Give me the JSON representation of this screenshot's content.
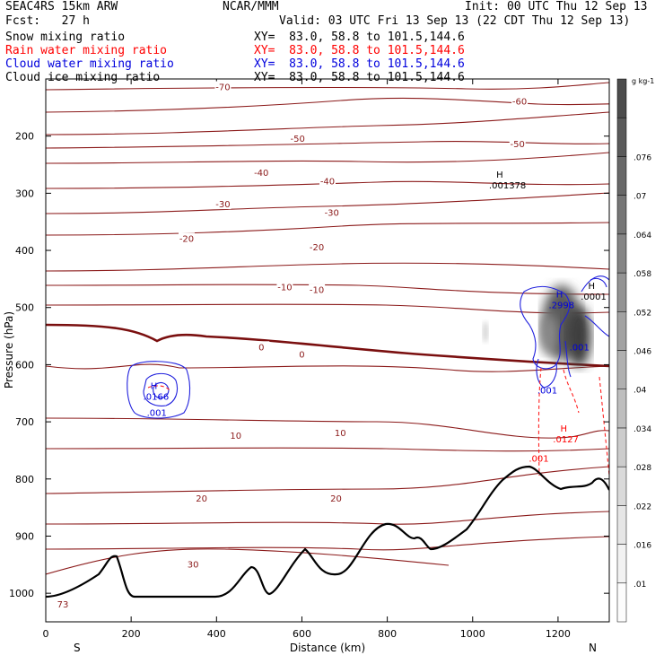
{
  "header": {
    "model": "SEAC4RS 15km ARW",
    "org": "NCAR/MMM",
    "init": "Init: 00 UTC Thu 12 Sep 13",
    "fcst": "Fcst:   27 h",
    "valid": "Valid: 03 UTC Fri 13 Sep 13 (22 CDT Thu 12 Sep 13)",
    "fields": [
      {
        "name": "Snow mixing ratio",
        "xy": "XY=  83.0, 58.8 to 101.5,144.6",
        "color": "#000000"
      },
      {
        "name": "Rain water mixing ratio",
        "xy": "XY=  83.0, 58.8 to 101.5,144.6",
        "color": "#ff0000"
      },
      {
        "name": "Cloud water mixing ratio",
        "xy": "XY=  83.0, 58.8 to 101.5,144.6",
        "color": "#0000dd"
      },
      {
        "name": "Cloud ice mixing ratio",
        "xy": "XY=  83.0, 58.8 to 101.5,144.6",
        "color": "#000000"
      }
    ]
  },
  "chart_data": {
    "type": "cross-section",
    "xlabel": "Distance (km)",
    "ylabel": "Pressure (hPa)",
    "xlim": [
      0,
      1320
    ],
    "ylim": [
      1050,
      100
    ],
    "xticks": [
      0,
      200,
      400,
      600,
      800,
      1000,
      1200
    ],
    "yticks": [
      200,
      300,
      400,
      500,
      600,
      700,
      800,
      900,
      1000
    ],
    "x_end_labels": {
      "left": "S",
      "right": "N"
    },
    "colorbar": {
      "unit": "g kg-1",
      "labels": [
        ".01",
        ".016",
        ".022",
        ".028",
        ".034",
        ".04",
        ".046",
        ".052",
        ".058",
        ".064",
        ".07",
        ".076"
      ],
      "colors": [
        "#fcfcfc",
        "#f2f2f2",
        "#e6e6e6",
        "#dadada",
        "#cccccc",
        "#bebebe",
        "#b0b0b0",
        "#a2a2a2",
        "#939393",
        "#858585",
        "#767676",
        "#686868",
        "#5a5a5a",
        "#4c4c4c"
      ]
    },
    "temperature_contours": {
      "color": "#8b1a1a",
      "labels": [
        {
          "text": "-70",
          "x": 415,
          "p": 115
        },
        {
          "text": "-60",
          "x": 1110,
          "p": 140
        },
        {
          "text": "-50",
          "x": 590,
          "p": 205
        },
        {
          "text": "-50",
          "x": 1105,
          "p": 215
        },
        {
          "text": "-40",
          "x": 505,
          "p": 265
        },
        {
          "text": "-40",
          "x": 660,
          "p": 280
        },
        {
          "text": "-30",
          "x": 415,
          "p": 320
        },
        {
          "text": "-30",
          "x": 670,
          "p": 335
        },
        {
          "text": "-20",
          "x": 330,
          "p": 380
        },
        {
          "text": "-20",
          "x": 635,
          "p": 395
        },
        {
          "text": "-10",
          "x": 560,
          "p": 465
        },
        {
          "text": "-10",
          "x": 635,
          "p": 470
        },
        {
          "text": "0",
          "x": 505,
          "p": 570
        },
        {
          "text": "0",
          "x": 600,
          "p": 583
        },
        {
          "text": "10",
          "x": 445,
          "p": 725
        },
        {
          "text": "10",
          "x": 690,
          "p": 720
        },
        {
          "text": "20",
          "x": 365,
          "p": 835
        },
        {
          "text": "20",
          "x": 680,
          "p": 835
        },
        {
          "text": "30",
          "x": 345,
          "p": 950
        },
        {
          "text": "73",
          "x": 40,
          "p": 1020
        }
      ]
    },
    "maxima_labels": [
      {
        "text": "H",
        "value": ".001378",
        "x": 1055,
        "p": 285,
        "color": "#000000"
      },
      {
        "text": "H",
        "value": ".2998",
        "x": 1195,
        "p": 495,
        "color": "#0000dd"
      },
      {
        "text": "H",
        "value": ".0001",
        "x": 1270,
        "p": 480,
        "color": "#000000"
      },
      {
        "text": "H",
        "value": ".0166",
        "x": 245,
        "p": 655,
        "color": "#0000dd"
      },
      {
        "text": "H",
        "value": ".0127",
        "x": 1205,
        "p": 730,
        "color": "#ff0000"
      }
    ],
    "contour_labels": [
      {
        "text": ".001",
        "x": 260,
        "p": 690,
        "color": "#0000dd"
      },
      {
        "text": ".001",
        "x": 1250,
        "p": 575,
        "color": "#0000dd"
      },
      {
        "text": ".001",
        "x": 1175,
        "p": 650,
        "color": "#0000dd"
      },
      {
        "text": ".001",
        "x": 1155,
        "p": 770,
        "color": "#ff0000"
      }
    ]
  }
}
